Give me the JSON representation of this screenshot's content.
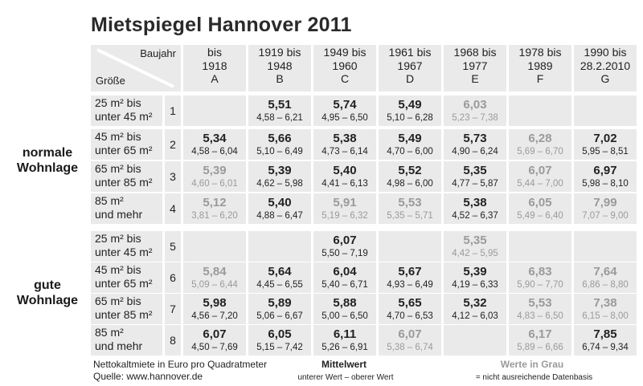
{
  "title": "Mietspiegel Hannover 2011",
  "header": {
    "baujahr_label": "Baujahr",
    "groesse_label": "Größe",
    "columns": [
      {
        "l1": "bis",
        "l2": "1918",
        "l3": "A"
      },
      {
        "l1": "1919 bis",
        "l2": "1948",
        "l3": "B"
      },
      {
        "l1": "1949 bis",
        "l2": "1960",
        "l3": "C"
      },
      {
        "l1": "1961 bis",
        "l2": "1967",
        "l3": "D"
      },
      {
        "l1": "1968 bis",
        "l2": "1977",
        "l3": "E"
      },
      {
        "l1": "1978 bis",
        "l2": "1989",
        "l3": "F"
      },
      {
        "l1": "1990 bis",
        "l2": "28.2.2010",
        "l3": "G"
      }
    ]
  },
  "groups": [
    {
      "label_1": "normale",
      "label_2": "Wohnlage"
    },
    {
      "label_1": "gute",
      "label_2": "Wohnlage"
    }
  ],
  "sizes": [
    {
      "l1": "25 m² bis",
      "l2": "unter 45 m²"
    },
    {
      "l1": "45 m² bis",
      "l2": "unter 65 m²"
    },
    {
      "l1": "65 m² bis",
      "l2": "unter 85 m²"
    },
    {
      "l1": "85 m²",
      "l2": "und mehr"
    }
  ],
  "rows": [
    {
      "num": "1",
      "cells": [
        null,
        {
          "mean": "5,51",
          "range": "4,58 – 6,21",
          "grey": false
        },
        {
          "mean": "5,74",
          "range": "4,95 – 6,50",
          "grey": false
        },
        {
          "mean": "5,49",
          "range": "5,10 – 6,28",
          "grey": false
        },
        {
          "mean": "6,03",
          "range": "5,23 – 7,38",
          "grey": true
        },
        null,
        null
      ]
    },
    {
      "num": "2",
      "cells": [
        {
          "mean": "5,34",
          "range": "4,58 – 6,04",
          "grey": false
        },
        {
          "mean": "5,66",
          "range": "5,10 – 6,49",
          "grey": false
        },
        {
          "mean": "5,38",
          "range": "4,73 – 6,14",
          "grey": false
        },
        {
          "mean": "5,49",
          "range": "4,70 – 6,00",
          "grey": false
        },
        {
          "mean": "5,73",
          "range": "4,90 – 6,24",
          "grey": false
        },
        {
          "mean": "6,28",
          "range": "5,69 – 6,70",
          "grey": true
        },
        {
          "mean": "7,02",
          "range": "5,95 – 8,51",
          "grey": false
        }
      ]
    },
    {
      "num": "3",
      "cells": [
        {
          "mean": "5,39",
          "range": "4,60 – 6,01",
          "grey": true
        },
        {
          "mean": "5,39",
          "range": "4,62 – 5,98",
          "grey": false
        },
        {
          "mean": "5,40",
          "range": "4,41 – 6,13",
          "grey": false
        },
        {
          "mean": "5,52",
          "range": "4,98 – 6,00",
          "grey": false
        },
        {
          "mean": "5,35",
          "range": "4,77 – 5,87",
          "grey": false
        },
        {
          "mean": "6,07",
          "range": "5,44 – 7,00",
          "grey": true
        },
        {
          "mean": "6,97",
          "range": "5,98 – 8,10",
          "grey": false
        }
      ]
    },
    {
      "num": "4",
      "cells": [
        {
          "mean": "5,12",
          "range": "3,81 – 6,20",
          "grey": true
        },
        {
          "mean": "5,40",
          "range": "4,88 – 6,47",
          "grey": false
        },
        {
          "mean": "5,91",
          "range": "5,19 – 6,32",
          "grey": true
        },
        {
          "mean": "5,53",
          "range": "5,35 – 5,71",
          "grey": true
        },
        {
          "mean": "5,38",
          "range": "4,52 – 6,37",
          "grey": false
        },
        {
          "mean": "6,05",
          "range": "5,49 – 6,40",
          "grey": true
        },
        {
          "mean": "7,99",
          "range": "7,07 – 9,00",
          "grey": true
        }
      ]
    },
    {
      "num": "5",
      "cells": [
        null,
        null,
        {
          "mean": "6,07",
          "range": "5,50 – 7,19",
          "grey": false
        },
        null,
        {
          "mean": "5,35",
          "range": "4,42 – 5,95",
          "grey": true
        },
        null,
        null
      ]
    },
    {
      "num": "6",
      "cells": [
        {
          "mean": "5,84",
          "range": "5,09 – 6,44",
          "grey": true
        },
        {
          "mean": "5,64",
          "range": "4,45 – 6,55",
          "grey": false
        },
        {
          "mean": "6,04",
          "range": "5,40 – 6,71",
          "grey": false
        },
        {
          "mean": "5,67",
          "range": "4,93 – 6,49",
          "grey": false
        },
        {
          "mean": "5,39",
          "range": "4,19 – 6,33",
          "grey": false
        },
        {
          "mean": "6,83",
          "range": "5,90 – 7,70",
          "grey": true
        },
        {
          "mean": "7,64",
          "range": "6,86 – 8,80",
          "grey": true
        }
      ]
    },
    {
      "num": "7",
      "cells": [
        {
          "mean": "5,98",
          "range": "4,56 – 7,20",
          "grey": false
        },
        {
          "mean": "5,89",
          "range": "5,06 – 6,67",
          "grey": false
        },
        {
          "mean": "5,88",
          "range": "5,00 – 6,50",
          "grey": false
        },
        {
          "mean": "5,65",
          "range": "4,70 – 6,53",
          "grey": false
        },
        {
          "mean": "5,32",
          "range": "4,12 – 6,03",
          "grey": false
        },
        {
          "mean": "5,53",
          "range": "4,83 – 6,50",
          "grey": true
        },
        {
          "mean": "7,38",
          "range": "6,15 – 8,00",
          "grey": true
        }
      ]
    },
    {
      "num": "8",
      "cells": [
        {
          "mean": "6,07",
          "range": "4,50 – 7,69",
          "grey": false
        },
        {
          "mean": "6,05",
          "range": "5,15 – 7,42",
          "grey": false
        },
        {
          "mean": "6,11",
          "range": "5,26 – 6,91",
          "grey": false
        },
        {
          "mean": "6,07",
          "range": "5,38 – 6,74",
          "grey": true
        },
        null,
        {
          "mean": "6,17",
          "range": "5,89 – 6,66",
          "grey": true
        },
        {
          "mean": "7,85",
          "range": "6,74 – 9,34",
          "grey": false
        }
      ]
    }
  ],
  "footer": {
    "note_1": "Nettokaltmiete in Euro pro Quadratmeter",
    "note_2": "Quelle: www.hannover.de",
    "mittelwert": "Mittelwert",
    "range_legend": "unterer Wert – oberer Wert",
    "grey_legend": "Werte in Grau",
    "grey_explain": "= nicht ausreichende Datenbasis"
  },
  "colors": {
    "cell_bg": "#eaeaea",
    "grey_text": "#9a9a9a",
    "text": "#1a1a1a"
  }
}
